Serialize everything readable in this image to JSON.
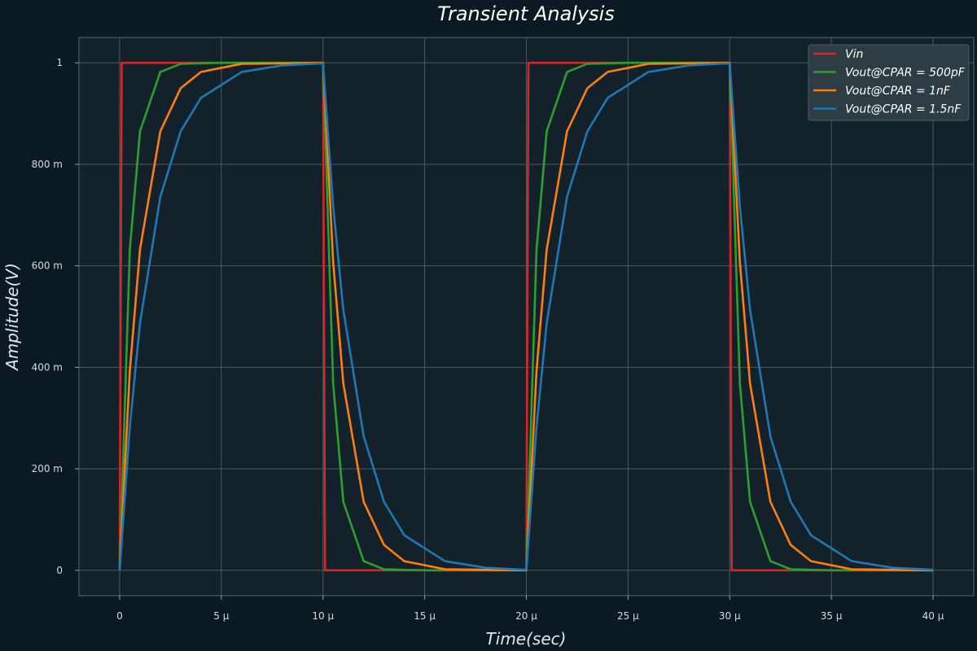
{
  "chart_data": {
    "type": "line",
    "title": "Transient Analysis",
    "xlabel": "Time(sec)",
    "ylabel": "Amplitude(V)",
    "xlim": [
      -2e-06,
      4.2e-05
    ],
    "ylim": [
      -0.05,
      1.05
    ],
    "x_ticks": [
      0,
      5e-06,
      1e-05,
      1.5e-05,
      2e-05,
      2.5e-05,
      3e-05,
      3.5e-05,
      4e-05
    ],
    "x_tick_labels": [
      "0",
      "5 μ",
      "10 μ",
      "15 μ",
      "20 μ",
      "25 μ",
      "30 μ",
      "35 μ",
      "40 μ"
    ],
    "y_ticks": [
      0,
      0.2,
      0.4,
      0.6,
      0.8,
      1.0
    ],
    "y_tick_labels": [
      "0",
      "200 m",
      "400 m",
      "600 m",
      "800 m",
      "1"
    ],
    "grid": true,
    "legend_position": "top-right",
    "colors": {
      "background": "#0b1a22",
      "plot_background": "#13222a",
      "grid": "#4c5a61",
      "legend_background": "#2e3c43"
    },
    "series": [
      {
        "name": "Vin",
        "legend_label": "Vin",
        "color": "#d62728",
        "x": [
          0,
          1e-07,
          1e-05,
          1.01e-05,
          2e-05,
          2.01e-05,
          3e-05,
          3.01e-05,
          4e-05
        ],
        "y": [
          0,
          1,
          1,
          0,
          0,
          1,
          1,
          0,
          0
        ]
      },
      {
        "name": "Vout@CPAR=500pF",
        "legend_label": "Vout@CPAR = 500pF",
        "color": "#2ca02c",
        "x": [
          0,
          5e-07,
          1e-06,
          2e-06,
          3e-06,
          5e-06,
          1e-05,
          1.05e-05,
          1.1e-05,
          1.2e-05,
          1.3e-05,
          1.5e-05,
          2e-05,
          2.05e-05,
          2.1e-05,
          2.2e-05,
          2.3e-05,
          2.5e-05,
          3e-05,
          3.05e-05,
          3.1e-05,
          3.2e-05,
          3.3e-05,
          3.5e-05,
          4e-05
        ],
        "y": [
          0,
          0.632,
          0.865,
          0.982,
          0.998,
          1.0,
          1.0,
          0.368,
          0.135,
          0.018,
          0.002,
          0.0,
          0.0,
          0.632,
          0.865,
          0.982,
          0.998,
          1.0,
          1.0,
          0.368,
          0.135,
          0.018,
          0.002,
          0.0,
          0.0
        ]
      },
      {
        "name": "Vout@CPAR=1nF",
        "legend_label": "Vout@CPAR = 1nF",
        "color": "#ff7f0e",
        "x": [
          0,
          5e-07,
          1e-06,
          2e-06,
          3e-06,
          4e-06,
          6e-06,
          1e-05,
          1.05e-05,
          1.1e-05,
          1.2e-05,
          1.3e-05,
          1.4e-05,
          1.6e-05,
          2e-05,
          2.05e-05,
          2.1e-05,
          2.2e-05,
          2.3e-05,
          2.4e-05,
          2.6e-05,
          3e-05,
          3.05e-05,
          3.1e-05,
          3.2e-05,
          3.3e-05,
          3.4e-05,
          3.6e-05,
          4e-05
        ],
        "y": [
          0,
          0.393,
          0.632,
          0.865,
          0.95,
          0.982,
          0.998,
          1.0,
          0.607,
          0.368,
          0.135,
          0.05,
          0.018,
          0.002,
          0.0,
          0.393,
          0.632,
          0.865,
          0.95,
          0.982,
          0.998,
          1.0,
          0.607,
          0.368,
          0.135,
          0.05,
          0.018,
          0.002,
          0.0
        ]
      },
      {
        "name": "Vout@CPAR=1.5nF",
        "legend_label": "Vout@CPAR = 1.5nF",
        "color": "#1f77b4",
        "x": [
          0,
          5e-07,
          1e-06,
          2e-06,
          3e-06,
          4e-06,
          6e-06,
          8e-06,
          1e-05,
          1.05e-05,
          1.1e-05,
          1.2e-05,
          1.3e-05,
          1.4e-05,
          1.6e-05,
          1.8e-05,
          2e-05,
          2.05e-05,
          2.1e-05,
          2.2e-05,
          2.3e-05,
          2.4e-05,
          2.6e-05,
          2.8e-05,
          3e-05,
          3.05e-05,
          3.1e-05,
          3.2e-05,
          3.3e-05,
          3.4e-05,
          3.6e-05,
          3.8e-05,
          4e-05
        ],
        "y": [
          0,
          0.283,
          0.487,
          0.736,
          0.865,
          0.931,
          0.982,
          0.995,
          0.999,
          0.717,
          0.513,
          0.264,
          0.135,
          0.069,
          0.018,
          0.005,
          0.001,
          0.283,
          0.487,
          0.736,
          0.865,
          0.931,
          0.982,
          0.995,
          0.999,
          0.717,
          0.513,
          0.264,
          0.135,
          0.069,
          0.018,
          0.005,
          0.001
        ]
      }
    ]
  }
}
